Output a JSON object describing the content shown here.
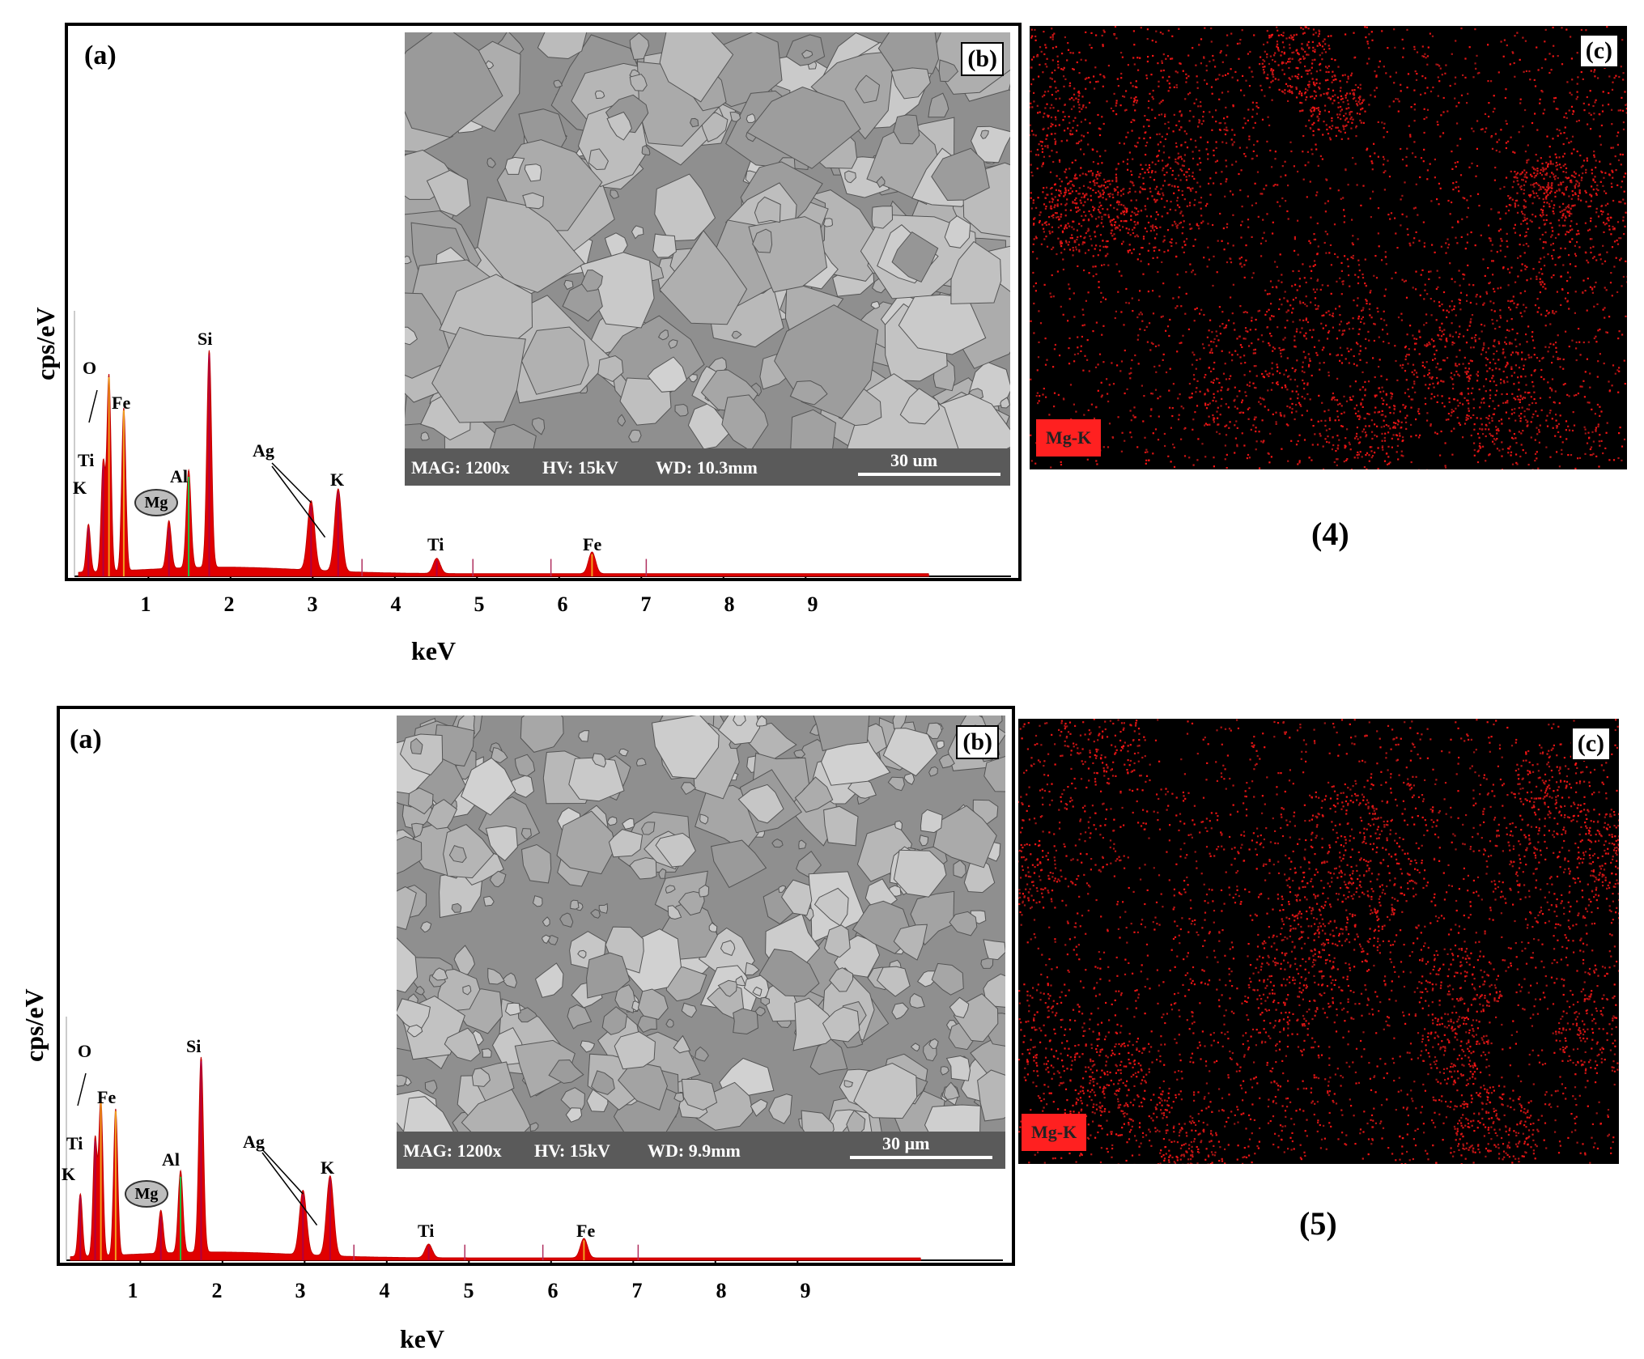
{
  "figures": [
    {
      "number_label": "(4)",
      "spectrum": {
        "panel_label": "(a)",
        "ylabel": "cps/eV",
        "xlabel": "keV",
        "x_ticks": [
          "1",
          "2",
          "3",
          "4",
          "5",
          "6",
          "7",
          "8",
          "9"
        ],
        "peak_labels": {
          "O": "O",
          "Fe": "Fe",
          "Ti": "Ti",
          "K": "K",
          "Mg": "Mg",
          "Al": "Al",
          "Si": "Si",
          "Ag": "Ag",
          "K2": "K",
          "Ti2": "Ti",
          "Fe2": "Fe"
        }
      },
      "sem": {
        "panel_label": "(b)",
        "info": {
          "mag": "MAG: 1200x",
          "hv": "HV: 15kV",
          "wd": "WD: 10.3mm"
        },
        "scale_bar": "30 um"
      },
      "map": {
        "panel_label": "(c)",
        "element_label": "Mg-K"
      }
    },
    {
      "number_label": "(5)",
      "spectrum": {
        "panel_label": "(a)",
        "ylabel": "cps/eV",
        "xlabel": "keV",
        "x_ticks": [
          "1",
          "2",
          "3",
          "4",
          "5",
          "6",
          "7",
          "8",
          "9"
        ],
        "peak_labels": {
          "O": "O",
          "Fe": "Fe",
          "Ti": "Ti",
          "K": "K",
          "Mg": "Mg",
          "Al": "Al",
          "Si": "Si",
          "Ag": "Ag",
          "K2": "K",
          "Ti2": "Ti",
          "Fe2": "Fe"
        }
      },
      "sem": {
        "panel_label": "(b)",
        "info": {
          "mag": "MAG: 1200x",
          "hv": "HV: 15kV",
          "wd": "WD: 9.9mm"
        },
        "scale_bar": "30 µm"
      },
      "map": {
        "panel_label": "(c)",
        "element_label": "Mg-K"
      }
    }
  ],
  "chart_data": [
    {
      "type": "line",
      "title": "",
      "xlabel": "keV",
      "ylabel": "cps/eV",
      "xlim": [
        0.1,
        11.5
      ],
      "peaks": [
        {
          "element": "K",
          "x": 0.27,
          "height": 0.22
        },
        {
          "element": "Ti",
          "x": 0.45,
          "height": 0.5
        },
        {
          "element": "O",
          "x": 0.52,
          "height": 0.9
        },
        {
          "element": "Fe",
          "x": 0.7,
          "height": 0.75
        },
        {
          "element": "Mg",
          "x": 1.25,
          "height": 0.22
        },
        {
          "element": "Al",
          "x": 1.49,
          "height": 0.45
        },
        {
          "element": "Si",
          "x": 1.74,
          "height": 1.0
        },
        {
          "element": "Ag",
          "x": 2.98,
          "height": 0.32
        },
        {
          "element": "K",
          "x": 3.31,
          "height": 0.38
        },
        {
          "element": "Ti",
          "x": 4.51,
          "height": 0.07
        },
        {
          "element": "Fe",
          "x": 6.4,
          "height": 0.1
        }
      ]
    },
    {
      "type": "line",
      "title": "",
      "xlabel": "keV",
      "ylabel": "cps/eV",
      "xlim": [
        0.1,
        11.5
      ],
      "peaks": [
        {
          "element": "K",
          "x": 0.27,
          "height": 0.32
        },
        {
          "element": "Ti",
          "x": 0.45,
          "height": 0.6
        },
        {
          "element": "O",
          "x": 0.52,
          "height": 0.8
        },
        {
          "element": "Fe",
          "x": 0.7,
          "height": 0.75
        },
        {
          "element": "Mg",
          "x": 1.25,
          "height": 0.22
        },
        {
          "element": "Al",
          "x": 1.49,
          "height": 0.42
        },
        {
          "element": "Si",
          "x": 1.74,
          "height": 1.0
        },
        {
          "element": "Ag",
          "x": 2.98,
          "height": 0.33
        },
        {
          "element": "K",
          "x": 3.31,
          "height": 0.41
        },
        {
          "element": "Ti",
          "x": 4.51,
          "height": 0.07
        },
        {
          "element": "Fe",
          "x": 6.4,
          "height": 0.1
        }
      ]
    }
  ]
}
